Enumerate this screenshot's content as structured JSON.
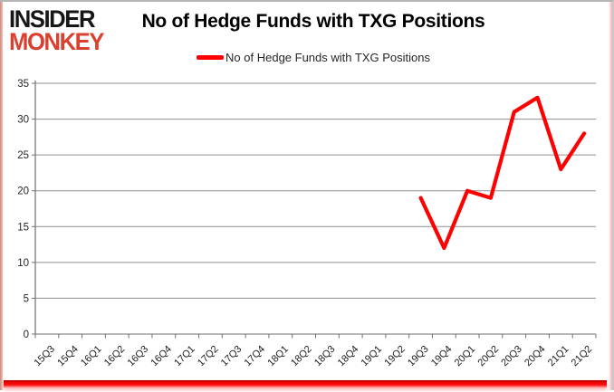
{
  "logo": {
    "line1": "INSIDER",
    "line2": "MONKEY",
    "line1_color": "#161616",
    "line2_color": "#d9402e"
  },
  "title": "No of Hedge Funds with TXG Positions",
  "legend": {
    "label": "No of Hedge Funds with TXG Positions",
    "line_color": "#fe0000"
  },
  "chart_data": {
    "type": "line",
    "title": "No of Hedge Funds with TXG Positions",
    "categories": [
      "15Q3",
      "15Q4",
      "16Q1",
      "16Q2",
      "16Q3",
      "16Q4",
      "17Q1",
      "17Q2",
      "17Q3",
      "17Q4",
      "18Q1",
      "18Q2",
      "18Q3",
      "18Q4",
      "19Q1",
      "19Q2",
      "19Q3",
      "19Q4",
      "20Q1",
      "20Q2",
      "20Q3",
      "20Q4",
      "21Q1",
      "21Q2"
    ],
    "series": [
      {
        "name": "No of Hedge Funds with TXG Positions",
        "color": "#fe0000",
        "values": [
          null,
          null,
          null,
          null,
          null,
          null,
          null,
          null,
          null,
          null,
          null,
          null,
          null,
          null,
          null,
          null,
          19,
          12,
          20,
          19,
          31,
          33,
          23,
          28
        ]
      }
    ],
    "ylim": [
      0,
      35
    ],
    "yticks": [
      0,
      5,
      10,
      15,
      20,
      25,
      30,
      35
    ],
    "grid": true,
    "legend_position": "top",
    "gridline_color": "#8f8f8f",
    "axis_color": "#707070"
  }
}
